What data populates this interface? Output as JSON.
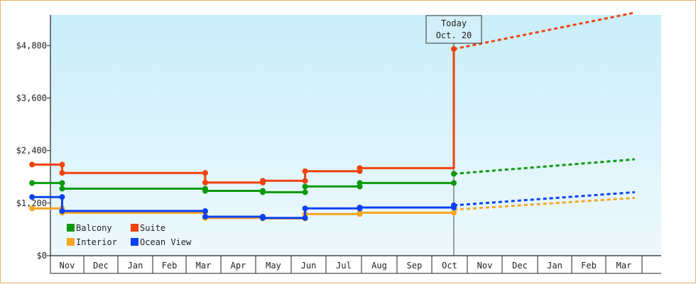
{
  "chart_data": {
    "type": "line",
    "title": "",
    "xlabel": "",
    "ylabel": "",
    "ylim": [
      0,
      5500
    ],
    "y_ticks": [
      {
        "value": 0,
        "label": "$0"
      },
      {
        "value": 1200,
        "label": "$1,200"
      },
      {
        "value": 2400,
        "label": "$2,400"
      },
      {
        "value": 3600,
        "label": "$3,600"
      },
      {
        "value": 4800,
        "label": "$4,800"
      }
    ],
    "categories": [
      "Nov",
      "Dec",
      "Jan",
      "Feb",
      "Mar",
      "Apr",
      "May",
      "Jun",
      "Jul",
      "Aug",
      "Sep",
      "Oct",
      "Nov",
      "Dec",
      "Jan",
      "Feb",
      "Mar"
    ],
    "today_marker": {
      "line1": "Today",
      "line2": "Oct. 20",
      "x": 11.62
    },
    "grid": false,
    "legend_position": "bottom-left",
    "series": [
      {
        "name": "Balcony",
        "color": "#0c9a0c",
        "history": [
          [
            -0.55,
            1660
          ],
          [
            0.35,
            1660
          ],
          [
            0.35,
            1530
          ],
          [
            4.55,
            1530
          ],
          [
            4.55,
            1480
          ],
          [
            6.2,
            1480
          ],
          [
            6.2,
            1450
          ],
          [
            7.4,
            1450
          ],
          [
            7.4,
            1580
          ],
          [
            8.95,
            1580
          ],
          [
            8.95,
            1660
          ],
          [
            11.62,
            1660
          ]
        ],
        "markers": [
          [
            -0.55,
            1660
          ],
          [
            0.35,
            1660
          ],
          [
            0.35,
            1530
          ],
          [
            4.55,
            1530
          ],
          [
            4.55,
            1480
          ],
          [
            6.2,
            1480
          ],
          [
            6.2,
            1450
          ],
          [
            7.4,
            1450
          ],
          [
            7.4,
            1580
          ],
          [
            8.95,
            1580
          ],
          [
            8.95,
            1660
          ],
          [
            11.62,
            1660
          ],
          [
            11.62,
            1870
          ]
        ],
        "forecast": [
          [
            11.62,
            1870
          ],
          [
            16.8,
            2200
          ]
        ]
      },
      {
        "name": "Suite",
        "color": "#f0420c",
        "history": [
          [
            -0.55,
            2080
          ],
          [
            0.35,
            2080
          ],
          [
            0.35,
            1890
          ],
          [
            4.55,
            1890
          ],
          [
            4.55,
            1670
          ],
          [
            6.2,
            1670
          ],
          [
            6.2,
            1710
          ],
          [
            7.4,
            1710
          ],
          [
            7.4,
            1930
          ],
          [
            8.95,
            1930
          ],
          [
            8.95,
            2000
          ],
          [
            11.62,
            2000
          ],
          [
            11.62,
            4720
          ]
        ],
        "markers": [
          [
            -0.55,
            2080
          ],
          [
            0.35,
            2080
          ],
          [
            0.35,
            1890
          ],
          [
            4.55,
            1890
          ],
          [
            4.55,
            1670
          ],
          [
            6.2,
            1670
          ],
          [
            6.2,
            1710
          ],
          [
            7.4,
            1710
          ],
          [
            7.4,
            1930
          ],
          [
            8.95,
            1930
          ],
          [
            8.95,
            2000
          ],
          [
            11.62,
            4720
          ]
        ],
        "forecast": [
          [
            11.62,
            4720
          ],
          [
            16.8,
            5550
          ]
        ]
      },
      {
        "name": "Interior",
        "color": "#f5a623",
        "history": [
          [
            -0.55,
            1080
          ],
          [
            0.35,
            1080
          ],
          [
            0.35,
            980
          ],
          [
            4.55,
            980
          ],
          [
            4.55,
            860
          ],
          [
            6.2,
            860
          ],
          [
            6.2,
            850
          ],
          [
            7.4,
            850
          ],
          [
            7.4,
            950
          ],
          [
            8.95,
            950
          ],
          [
            8.95,
            980
          ],
          [
            11.62,
            980
          ]
        ],
        "markers": [
          [
            -0.55,
            1080
          ],
          [
            0.35,
            1080
          ],
          [
            0.35,
            980
          ],
          [
            4.55,
            980
          ],
          [
            4.55,
            860
          ],
          [
            6.2,
            860
          ],
          [
            6.2,
            850
          ],
          [
            7.4,
            850
          ],
          [
            7.4,
            950
          ],
          [
            8.95,
            950
          ],
          [
            8.95,
            980
          ],
          [
            11.62,
            980
          ]
        ],
        "forecast": [
          [
            11.62,
            1050
          ],
          [
            16.8,
            1320
          ]
        ]
      },
      {
        "name": "Ocean View",
        "color": "#0b41f2",
        "history": [
          [
            -0.55,
            1340
          ],
          [
            0.35,
            1340
          ],
          [
            0.35,
            1020
          ],
          [
            4.55,
            1020
          ],
          [
            4.55,
            890
          ],
          [
            6.2,
            890
          ],
          [
            6.2,
            860
          ],
          [
            7.4,
            860
          ],
          [
            7.4,
            1080
          ],
          [
            8.95,
            1080
          ],
          [
            8.95,
            1100
          ],
          [
            11.62,
            1100
          ]
        ],
        "markers": [
          [
            -0.55,
            1340
          ],
          [
            0.35,
            1340
          ],
          [
            0.35,
            1020
          ],
          [
            4.55,
            1020
          ],
          [
            4.55,
            890
          ],
          [
            6.2,
            890
          ],
          [
            6.2,
            860
          ],
          [
            7.4,
            860
          ],
          [
            7.4,
            1080
          ],
          [
            8.95,
            1080
          ],
          [
            8.95,
            1100
          ],
          [
            11.62,
            1100
          ],
          [
            11.62,
            1150
          ]
        ],
        "forecast": [
          [
            11.62,
            1150
          ],
          [
            16.8,
            1450
          ]
        ]
      }
    ]
  }
}
